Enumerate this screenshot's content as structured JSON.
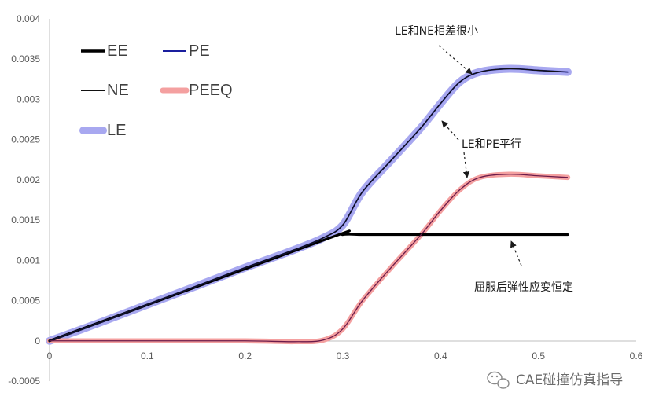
{
  "chart_data": {
    "type": "line",
    "title": "",
    "xlabel": "",
    "ylabel": "",
    "xlim": [
      0,
      0.6
    ],
    "ylim": [
      -0.0005,
      0.004
    ],
    "x_ticks": [
      "0",
      "0.1",
      "0.2",
      "0.3",
      "0.4",
      "0.5",
      "0.6"
    ],
    "y_ticks": [
      "-0.0005",
      "0",
      "0.0005",
      "0.001",
      "0.0015",
      "0.002",
      "0.0025",
      "0.003",
      "0.0035",
      "0.004"
    ],
    "grid": false,
    "legend_placement": "top-left",
    "series": [
      {
        "name": "EE",
        "color": "#000000",
        "style": "thick",
        "points": [
          [
            0,
            0
          ],
          [
            0.28,
            0.00125
          ],
          [
            0.3,
            0.00132
          ],
          [
            0.32,
            0.00132
          ],
          [
            0.35,
            0.00132
          ],
          [
            0.4,
            0.00132
          ],
          [
            0.45,
            0.00132
          ],
          [
            0.5,
            0.00132
          ],
          [
            0.53,
            0.00132
          ]
        ]
      },
      {
        "name": "PE",
        "color": "#1a1f9e",
        "style": "thin",
        "points": [
          [
            0,
            0
          ],
          [
            0.05,
            0.00022
          ],
          [
            0.1,
            0.00045
          ],
          [
            0.15,
            0.00068
          ],
          [
            0.2,
            0.00091
          ],
          [
            0.25,
            0.00113
          ],
          [
            0.28,
            0.00128
          ],
          [
            0.3,
            0.00144
          ],
          [
            0.32,
            0.00185
          ],
          [
            0.35,
            0.00225
          ],
          [
            0.38,
            0.00265
          ],
          [
            0.4,
            0.00295
          ],
          [
            0.42,
            0.00322
          ],
          [
            0.44,
            0.00334
          ],
          [
            0.47,
            0.00338
          ],
          [
            0.5,
            0.00336
          ],
          [
            0.53,
            0.00334
          ]
        ]
      },
      {
        "name": "NE",
        "color": "#111111",
        "style": "thin",
        "points": [
          [
            0,
            0
          ],
          [
            0.05,
            0.00022
          ],
          [
            0.1,
            0.00045
          ],
          [
            0.15,
            0.00068
          ],
          [
            0.2,
            0.00091
          ],
          [
            0.25,
            0.00113
          ],
          [
            0.28,
            0.00128
          ],
          [
            0.3,
            0.00144
          ],
          [
            0.32,
            0.00185
          ],
          [
            0.35,
            0.00225
          ],
          [
            0.38,
            0.00265
          ],
          [
            0.4,
            0.00295
          ],
          [
            0.42,
            0.00322
          ],
          [
            0.44,
            0.00334
          ],
          [
            0.47,
            0.00338
          ],
          [
            0.5,
            0.00336
          ],
          [
            0.53,
            0.00334
          ]
        ]
      },
      {
        "name": "PEEQ",
        "color": "#f4a0a0",
        "style": "thick-band",
        "points": [
          [
            0,
            0
          ],
          [
            0.1,
            0
          ],
          [
            0.2,
            0
          ],
          [
            0.25,
            -1e-05
          ],
          [
            0.28,
            1e-05
          ],
          [
            0.3,
            0.00015
          ],
          [
            0.32,
            0.0005
          ],
          [
            0.35,
            0.00092
          ],
          [
            0.38,
            0.00132
          ],
          [
            0.4,
            0.00162
          ],
          [
            0.42,
            0.00188
          ],
          [
            0.44,
            0.00203
          ],
          [
            0.47,
            0.00207
          ],
          [
            0.5,
            0.00205
          ],
          [
            0.53,
            0.00203
          ]
        ]
      },
      {
        "name": "LE",
        "color": "#a8a8f0",
        "style": "wide-band",
        "points": [
          [
            0,
            0
          ],
          [
            0.05,
            0.00022
          ],
          [
            0.1,
            0.00045
          ],
          [
            0.15,
            0.00068
          ],
          [
            0.2,
            0.00091
          ],
          [
            0.25,
            0.00113
          ],
          [
            0.28,
            0.00128
          ],
          [
            0.3,
            0.00144
          ],
          [
            0.32,
            0.00185
          ],
          [
            0.35,
            0.00225
          ],
          [
            0.38,
            0.00265
          ],
          [
            0.4,
            0.00295
          ],
          [
            0.42,
            0.00322
          ],
          [
            0.44,
            0.00334
          ],
          [
            0.47,
            0.00338
          ],
          [
            0.5,
            0.00336
          ],
          [
            0.53,
            0.00334
          ]
        ]
      }
    ],
    "annotations": [
      {
        "text": "LE和NE相差很小",
        "target": [
          0.44,
          0.00334
        ]
      },
      {
        "text": "LE和PE平行",
        "target_upper": [
          0.4,
          0.00275
        ],
        "target_lower": [
          0.42,
          0.00205
        ]
      },
      {
        "text": "屈服后弹性应变恒定",
        "target": [
          0.48,
          0.00132
        ]
      }
    ]
  },
  "watermark": {
    "icon": "wechat-icon",
    "text": "CAE碰撞仿真指导"
  }
}
